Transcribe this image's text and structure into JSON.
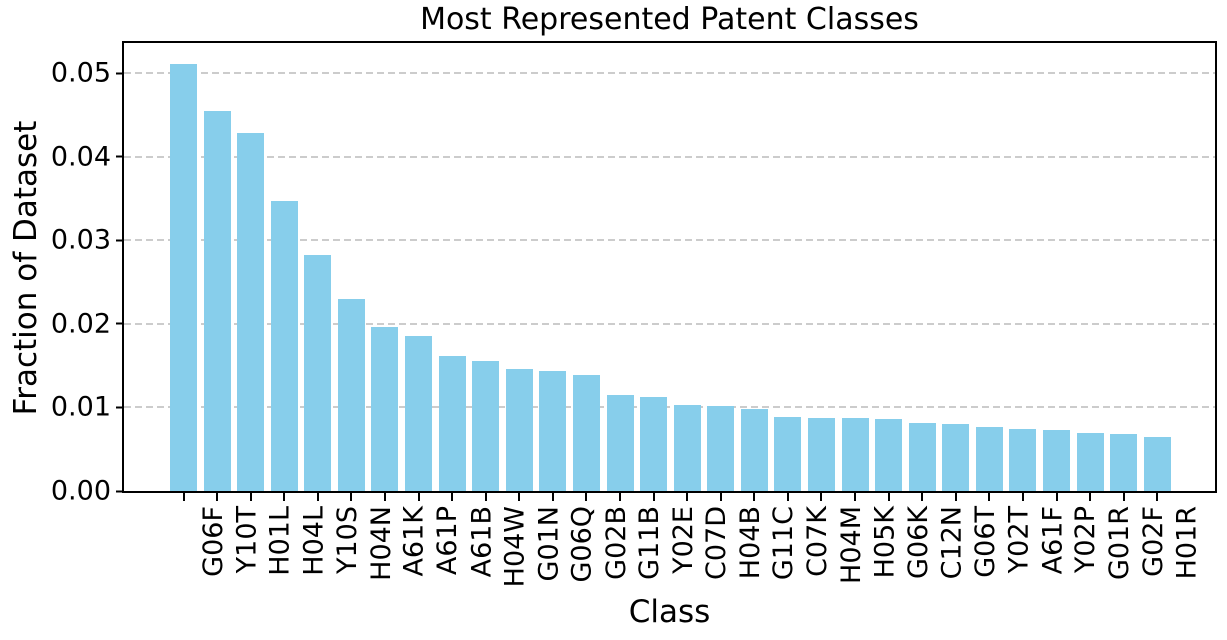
{
  "chart_data": {
    "type": "bar",
    "title": "Most Represented Patent Classes",
    "xlabel": "Class",
    "ylabel": "Fraction of Dataset",
    "categories": [
      "G06F",
      "Y10T",
      "H01L",
      "H04L",
      "Y10S",
      "H04N",
      "A61K",
      "A61P",
      "A61B",
      "H04W",
      "G01N",
      "G06Q",
      "G02B",
      "G11B",
      "Y02E",
      "C07D",
      "H04B",
      "G11C",
      "C07K",
      "H04M",
      "H05K",
      "G06K",
      "C12N",
      "G06T",
      "Y02T",
      "A61F",
      "Y02P",
      "G01R",
      "G02F",
      "H01R"
    ],
    "values": [
      0.0511,
      0.0455,
      0.0428,
      0.0347,
      0.0282,
      0.023,
      0.0196,
      0.0186,
      0.0162,
      0.0155,
      0.0146,
      0.0143,
      0.0139,
      0.0115,
      0.0113,
      0.0103,
      0.0102,
      0.0098,
      0.0088,
      0.0087,
      0.0087,
      0.0086,
      0.0081,
      0.008,
      0.0077,
      0.0074,
      0.0073,
      0.007,
      0.0068,
      0.0065
    ],
    "ylim": [
      0,
      0.0536
    ],
    "ytick_labels": [
      "0.00",
      "0.01",
      "0.02",
      "0.03",
      "0.04",
      "0.05"
    ],
    "ytick_values": [
      0.0,
      0.01,
      0.02,
      0.03,
      0.04,
      0.05
    ],
    "grid": "horizontal-dashed",
    "legend": "none",
    "bar_color": "#87CEEB",
    "grid_color": "#cccccc",
    "background_color": "#ffffff"
  }
}
